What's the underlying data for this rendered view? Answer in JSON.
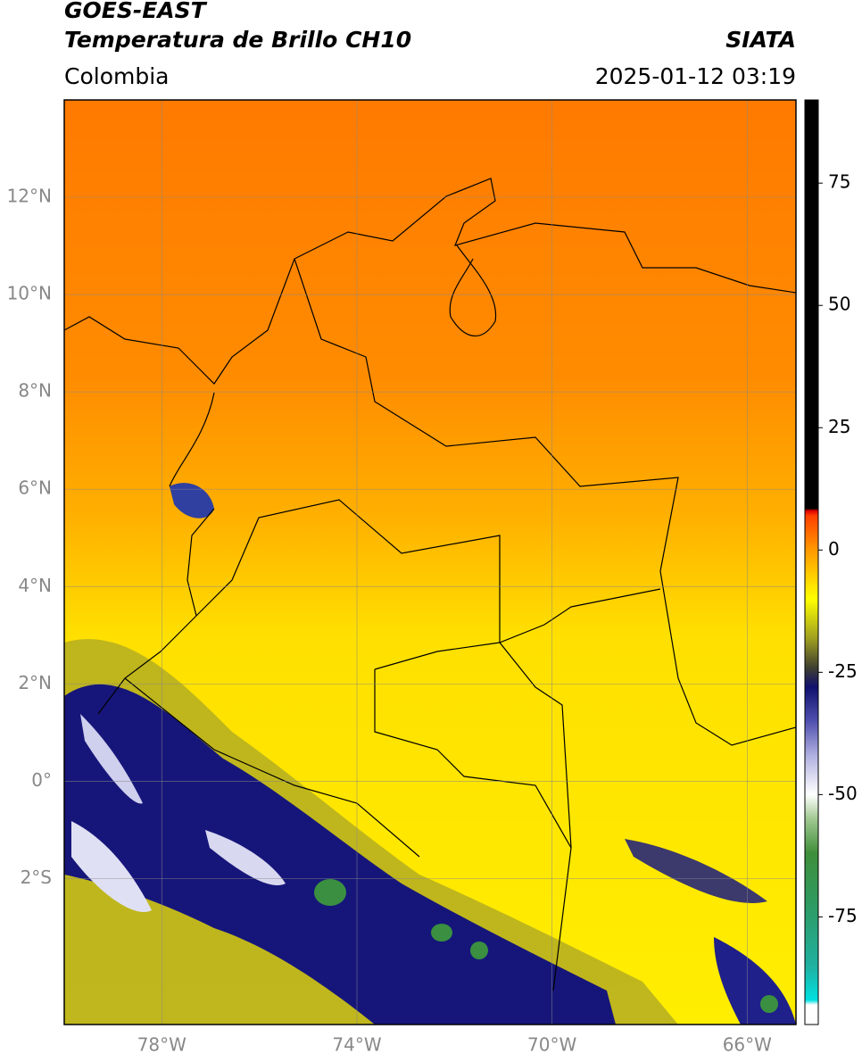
{
  "header": {
    "title": "GOES-EAST",
    "subtitle": "Temperatura de Brillo CH10",
    "source": "SIATA",
    "region": "Colombia",
    "datetime": "2025-01-12 03:19"
  },
  "map": {
    "lonlim": [
      -80,
      -65
    ],
    "latlim": [
      -5,
      14
    ],
    "grid": true,
    "lon_ticks": [
      {
        "value": -78,
        "label": "78°W"
      },
      {
        "value": -74,
        "label": "74°W"
      },
      {
        "value": -70,
        "label": "70°W"
      },
      {
        "value": -66,
        "label": "66°W"
      }
    ],
    "lat_ticks": [
      {
        "value": 12,
        "label": "12°N"
      },
      {
        "value": 10,
        "label": "10°N"
      },
      {
        "value": 8,
        "label": "8°N"
      },
      {
        "value": 6,
        "label": "6°N"
      },
      {
        "value": 4,
        "label": "4°N"
      },
      {
        "value": 2,
        "label": "2°N"
      },
      {
        "value": 0,
        "label": "0°"
      },
      {
        "value": -2,
        "label": "2°S"
      }
    ]
  },
  "colorbar": {
    "lim": [
      -97,
      92
    ],
    "ticks": [
      -75,
      -50,
      -25,
      0,
      25,
      50,
      75
    ],
    "stops": [
      {
        "value": -97,
        "color": "#ffffff"
      },
      {
        "value": -93,
        "color": "#ffffff"
      },
      {
        "value": -92,
        "color": "#00e0e0"
      },
      {
        "value": -85,
        "color": "#20b0a0"
      },
      {
        "value": -72,
        "color": "#2e9a60"
      },
      {
        "value": -62,
        "color": "#3f8f3a"
      },
      {
        "value": -55,
        "color": "#a0c890"
      },
      {
        "value": -50,
        "color": "#ffffff"
      },
      {
        "value": -42,
        "color": "#b0b0e0"
      },
      {
        "value": -35,
        "color": "#5050b0"
      },
      {
        "value": -28,
        "color": "#10106e"
      },
      {
        "value": -24,
        "color": "#404030"
      },
      {
        "value": -18,
        "color": "#a0a020"
      },
      {
        "value": -10,
        "color": "#ffff00"
      },
      {
        "value": 0,
        "color": "#ff9900"
      },
      {
        "value": 7,
        "color": "#ff4000"
      },
      {
        "value": 8,
        "color": "#e00000"
      },
      {
        "value": 8.5,
        "color": "#000000"
      },
      {
        "value": 92,
        "color": "#000000"
      }
    ]
  }
}
